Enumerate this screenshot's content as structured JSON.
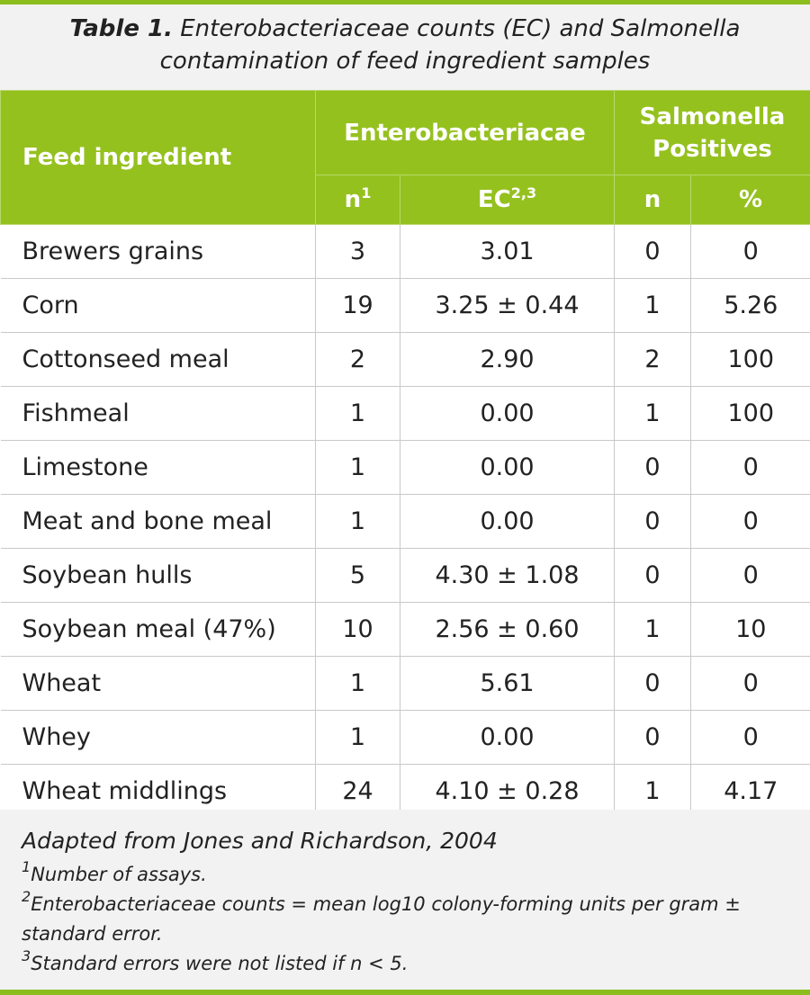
{
  "caption": {
    "lead": "Table 1.",
    "text": " Enterobacteriaceae counts (EC) and Salmonella contamination of feed ingredient samples"
  },
  "header": {
    "feed_ingredient": "Feed ingredient",
    "entero_group": "Enterobacteriacae",
    "salmonella_group": "Salmonella Positives",
    "n_label": "n",
    "n_sup": "1",
    "ec_label": "EC",
    "ec_sup": "2,3",
    "sal_n": "n",
    "sal_pct": "%"
  },
  "rows": [
    {
      "ingredient": "Brewers grains",
      "n": "3",
      "ec": "3.01",
      "sal_n": "0",
      "sal_pct": "0"
    },
    {
      "ingredient": "Corn",
      "n": "19",
      "ec": "3.25 ± 0.44",
      "sal_n": "1",
      "sal_pct": "5.26"
    },
    {
      "ingredient": "Cottonseed meal",
      "n": "2",
      "ec": "2.90",
      "sal_n": "2",
      "sal_pct": "100"
    },
    {
      "ingredient": "Fishmeal",
      "n": "1",
      "ec": "0.00",
      "sal_n": "1",
      "sal_pct": "100"
    },
    {
      "ingredient": "Limestone",
      "n": "1",
      "ec": "0.00",
      "sal_n": "0",
      "sal_pct": "0"
    },
    {
      "ingredient": "Meat and bone meal",
      "n": "1",
      "ec": "0.00",
      "sal_n": "0",
      "sal_pct": "0"
    },
    {
      "ingredient": "Soybean hulls",
      "n": "5",
      "ec": "4.30 ± 1.08",
      "sal_n": "0",
      "sal_pct": "0"
    },
    {
      "ingredient": "Soybean meal (47%)",
      "n": "10",
      "ec": "2.56 ± 0.60",
      "sal_n": "1",
      "sal_pct": "10"
    },
    {
      "ingredient": "Wheat",
      "n": "1",
      "ec": "5.61",
      "sal_n": "0",
      "sal_pct": "0"
    },
    {
      "ingredient": "Whey",
      "n": "1",
      "ec": "0.00",
      "sal_n": "0",
      "sal_pct": "0"
    },
    {
      "ingredient": "Wheat middlings",
      "n": "24",
      "ec": "4.10 ± 0.28",
      "sal_n": "1",
      "sal_pct": "4.17"
    }
  ],
  "footer": {
    "source": "Adapted from Jones and Richardson, 2004",
    "notes": [
      {
        "mark": "1",
        "text": "Number of assays."
      },
      {
        "mark": "2",
        "text": "Enterobacteriaceae counts = mean log10 colony-forming units per gram ± standard error."
      },
      {
        "mark": "3",
        "text": "Standard errors were not listed if n < 5."
      }
    ]
  },
  "colors": {
    "accent": "#95c11f",
    "rule": "#8cbd1e",
    "panel": "#f2f2f2"
  }
}
